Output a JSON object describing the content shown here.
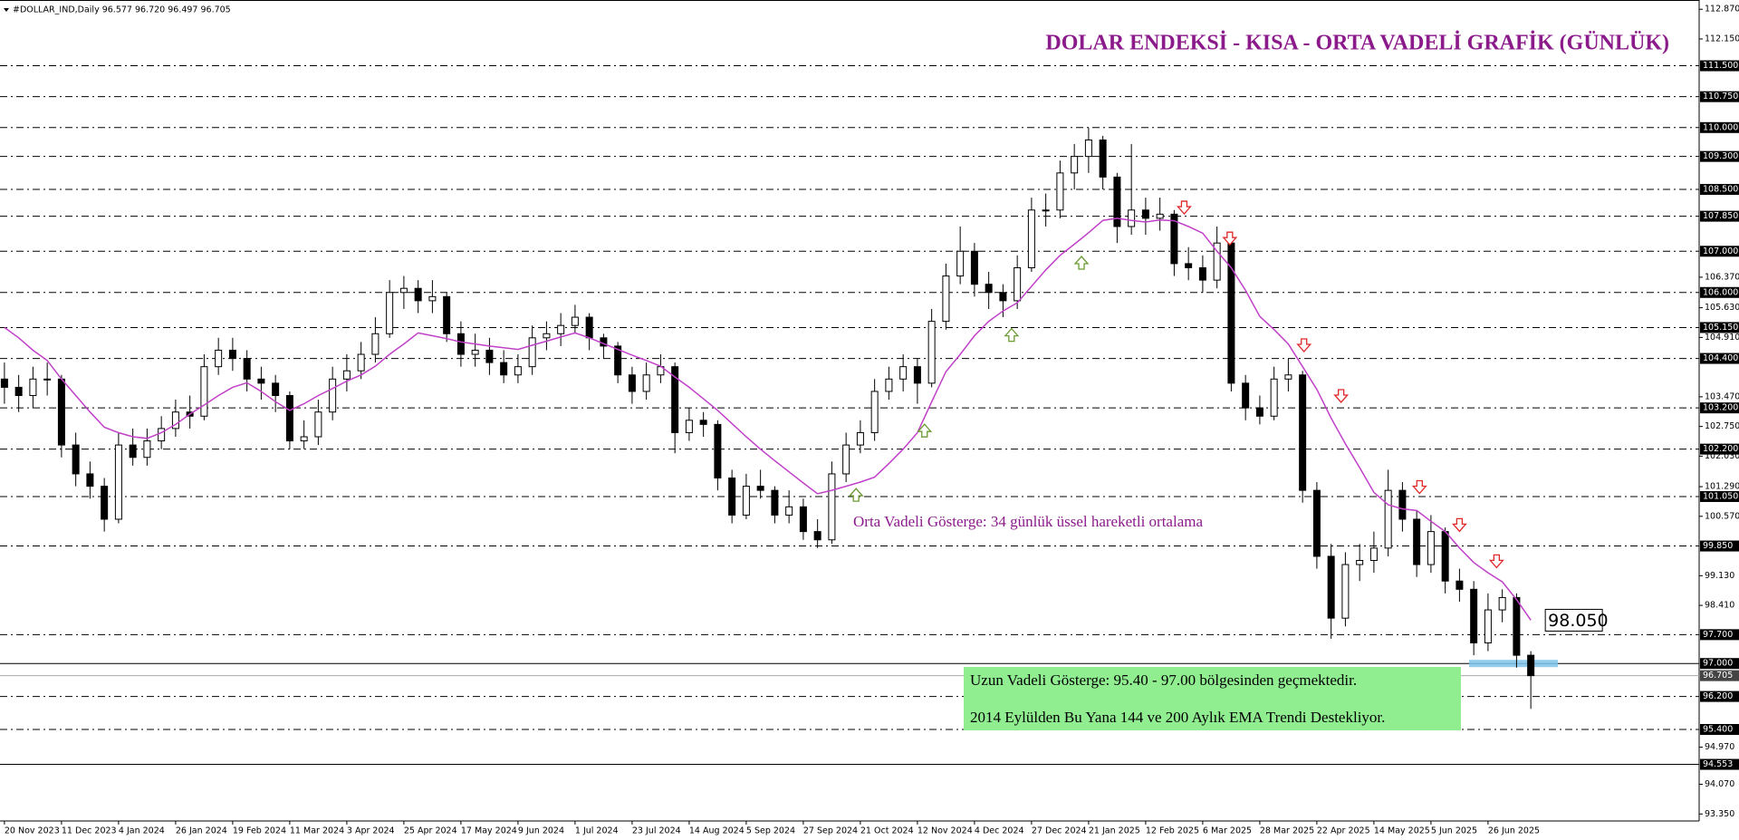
{
  "header": "#DOLLAR_IND,Daily  96.577 96.720 96.497 96.705",
  "chart_data": {
    "type": "candlestick",
    "title": "DOLAR ENDEKSİ - KISA - ORTA VADELİ GRAFİK (GÜNLÜK)",
    "ema_note": "Orta Vadeli Gösterge: 34 günlük üssel hareketli ortalama",
    "notes": [
      "Uzun Vadeli Gösterge: 95.40 - 97.00 bölgesinden geçmektedir.",
      "2014 Eylülden Bu Yana 144 ve 200 Aylık EMA Trendi Destekliyor."
    ],
    "categories": [
      "20 Nov 2023",
      null,
      null,
      null,
      "11 Dec 2023",
      null,
      null,
      null,
      "4 Jan 2024",
      null,
      null,
      null,
      "26 Jan 2024",
      null,
      null,
      null,
      "19 Feb 2024",
      null,
      null,
      null,
      "11 Mar 2024",
      null,
      null,
      null,
      "3 Apr 2024",
      null,
      null,
      null,
      "25 Apr 2024",
      null,
      null,
      null,
      "17 May 2024",
      null,
      null,
      null,
      "9 Jun 2024",
      null,
      null,
      null,
      "1 Jul 2024",
      null,
      null,
      null,
      "23 Jul 2024",
      null,
      null,
      null,
      "14 Aug 2024",
      null,
      null,
      null,
      "5 Sep 2024",
      null,
      null,
      null,
      "27 Sep 2024",
      null,
      null,
      null,
      "21 Oct 2024",
      null,
      null,
      null,
      "12 Nov 2024",
      null,
      null,
      null,
      "4 Dec 2024",
      null,
      null,
      null,
      "27 Dec 2024",
      null,
      null,
      null,
      "21 Jan 2025",
      null,
      null,
      null,
      "12 Feb 2025",
      null,
      null,
      null,
      "6 Mar 2025",
      null,
      null,
      null,
      "28 Mar 2025",
      null,
      null,
      null,
      "22 Apr 2025",
      null,
      null,
      null,
      "14 May 2025",
      null,
      null,
      null,
      "5 Jun 2025",
      null,
      null,
      null,
      "26 Jun 2025",
      null,
      null,
      null
    ],
    "candles": [
      [
        103.9,
        104.3,
        103.3,
        103.7
      ],
      [
        103.7,
        104.0,
        103.1,
        103.5
      ],
      [
        103.5,
        104.2,
        103.2,
        103.9
      ],
      [
        103.9,
        104.3,
        103.5,
        103.9
      ],
      [
        103.9,
        104.0,
        102.0,
        102.3
      ],
      [
        102.3,
        102.6,
        101.3,
        101.6
      ],
      [
        101.6,
        101.9,
        101.0,
        101.3
      ],
      [
        101.3,
        101.5,
        100.2,
        100.5
      ],
      [
        100.5,
        102.6,
        100.4,
        102.3
      ],
      [
        102.3,
        102.7,
        101.8,
        102.0
      ],
      [
        102.0,
        102.7,
        101.8,
        102.4
      ],
      [
        102.4,
        103.0,
        102.2,
        102.7
      ],
      [
        102.7,
        103.4,
        102.5,
        103.1
      ],
      [
        103.1,
        103.5,
        102.7,
        103.0
      ],
      [
        103.0,
        104.5,
        102.9,
        104.2
      ],
      [
        104.2,
        104.9,
        104.0,
        104.6
      ],
      [
        104.6,
        104.9,
        104.1,
        104.4
      ],
      [
        104.4,
        104.6,
        103.6,
        103.9
      ],
      [
        103.9,
        104.2,
        103.4,
        103.8
      ],
      [
        103.8,
        104.0,
        103.1,
        103.5
      ],
      [
        103.5,
        103.6,
        102.2,
        102.4
      ],
      [
        102.4,
        102.9,
        102.2,
        102.5
      ],
      [
        102.5,
        103.4,
        102.3,
        103.1
      ],
      [
        103.1,
        104.2,
        102.9,
        103.9
      ],
      [
        103.9,
        104.5,
        103.6,
        104.1
      ],
      [
        104.1,
        104.8,
        103.9,
        104.5
      ],
      [
        104.5,
        105.4,
        104.3,
        105.0
      ],
      [
        105.0,
        106.3,
        104.9,
        106.0
      ],
      [
        106.0,
        106.4,
        105.6,
        106.1
      ],
      [
        106.1,
        106.3,
        105.5,
        105.8
      ],
      [
        105.8,
        106.3,
        105.5,
        105.9
      ],
      [
        105.9,
        106.0,
        104.8,
        105.0
      ],
      [
        105.0,
        105.3,
        104.2,
        104.5
      ],
      [
        104.5,
        105.0,
        104.2,
        104.6
      ],
      [
        104.6,
        104.9,
        104.0,
        104.3
      ],
      [
        104.3,
        104.6,
        103.8,
        104.0
      ],
      [
        104.0,
        104.5,
        103.8,
        104.2
      ],
      [
        104.2,
        105.2,
        104.0,
        104.9
      ],
      [
        104.9,
        105.3,
        104.6,
        105.0
      ],
      [
        105.0,
        105.5,
        104.7,
        105.2
      ],
      [
        105.2,
        105.7,
        105.0,
        105.4
      ],
      [
        105.4,
        105.5,
        104.6,
        104.9
      ],
      [
        104.9,
        105.0,
        104.4,
        104.7
      ],
      [
        104.7,
        104.8,
        103.8,
        104.0
      ],
      [
        104.0,
        104.2,
        103.3,
        103.6
      ],
      [
        103.6,
        104.3,
        103.4,
        104.0
      ],
      [
        104.0,
        104.5,
        103.8,
        104.2
      ],
      [
        104.2,
        104.3,
        102.1,
        102.6
      ],
      [
        102.6,
        103.2,
        102.4,
        102.9
      ],
      [
        102.9,
        103.1,
        102.5,
        102.8
      ],
      [
        102.8,
        102.9,
        101.2,
        101.5
      ],
      [
        101.5,
        101.7,
        100.4,
        100.6
      ],
      [
        100.6,
        101.6,
        100.5,
        101.3
      ],
      [
        101.3,
        101.7,
        101.0,
        101.2
      ],
      [
        101.2,
        101.3,
        100.4,
        100.6
      ],
      [
        100.6,
        101.2,
        100.4,
        100.8
      ],
      [
        100.8,
        101.0,
        100.0,
        100.2
      ],
      [
        100.2,
        100.5,
        99.8,
        100.0
      ],
      [
        100.0,
        101.9,
        99.9,
        101.6
      ],
      [
        101.6,
        102.6,
        101.4,
        102.3
      ],
      [
        102.3,
        102.9,
        102.1,
        102.6
      ],
      [
        102.6,
        103.9,
        102.4,
        103.6
      ],
      [
        103.6,
        104.2,
        103.4,
        103.9
      ],
      [
        103.9,
        104.5,
        103.6,
        104.2
      ],
      [
        104.2,
        104.4,
        103.3,
        103.8
      ],
      [
        103.8,
        105.6,
        103.7,
        105.3
      ],
      [
        105.3,
        106.7,
        105.1,
        106.4
      ],
      [
        106.4,
        107.6,
        106.2,
        107.0
      ],
      [
        107.0,
        107.2,
        105.9,
        106.2
      ],
      [
        106.2,
        106.5,
        105.6,
        106.0
      ],
      [
        106.0,
        106.2,
        105.4,
        105.8
      ],
      [
        105.8,
        106.9,
        105.6,
        106.6
      ],
      [
        106.6,
        108.3,
        106.5,
        108.0
      ],
      [
        108.0,
        108.4,
        107.6,
        108.0
      ],
      [
        108.0,
        109.2,
        107.8,
        108.9
      ],
      [
        108.9,
        109.6,
        108.5,
        109.3
      ],
      [
        109.3,
        110.0,
        108.9,
        109.7
      ],
      [
        109.7,
        109.8,
        108.5,
        108.8
      ],
      [
        108.8,
        108.9,
        107.2,
        107.6
      ],
      [
        107.6,
        109.6,
        107.4,
        108.0
      ],
      [
        108.0,
        108.3,
        107.4,
        107.8
      ],
      [
        107.8,
        108.3,
        107.5,
        107.9
      ],
      [
        107.9,
        108.0,
        106.4,
        106.7
      ],
      [
        106.7,
        107.1,
        106.3,
        106.6
      ],
      [
        106.6,
        106.9,
        106.0,
        106.3
      ],
      [
        106.3,
        107.6,
        106.1,
        107.2
      ],
      [
        107.2,
        107.3,
        103.6,
        103.8
      ],
      [
        103.8,
        104.0,
        102.9,
        103.2
      ],
      [
        103.2,
        103.5,
        102.8,
        103.0
      ],
      [
        103.0,
        104.2,
        102.9,
        103.9
      ],
      [
        103.9,
        104.4,
        103.6,
        104.0
      ],
      [
        104.0,
        104.1,
        100.9,
        101.2
      ],
      [
        101.2,
        101.4,
        99.3,
        99.6
      ],
      [
        99.6,
        99.9,
        97.6,
        98.1
      ],
      [
        98.1,
        99.7,
        97.9,
        99.4
      ],
      [
        99.4,
        99.9,
        99.0,
        99.5
      ],
      [
        99.5,
        100.2,
        99.2,
        99.8
      ],
      [
        99.8,
        101.7,
        99.6,
        101.2
      ],
      [
        101.2,
        101.4,
        100.2,
        100.5
      ],
      [
        100.5,
        100.7,
        99.1,
        99.4
      ],
      [
        99.4,
        100.6,
        99.2,
        100.2
      ],
      [
        100.2,
        100.3,
        98.7,
        99.0
      ],
      [
        99.0,
        99.3,
        98.5,
        98.8
      ],
      [
        98.8,
        99.0,
        97.2,
        97.5
      ],
      [
        97.5,
        98.7,
        97.3,
        98.3
      ],
      [
        98.3,
        98.8,
        98.0,
        98.6
      ],
      [
        98.6,
        98.7,
        96.9,
        97.2
      ],
      [
        97.2,
        97.3,
        95.9,
        96.705
      ]
    ],
    "up_color": "#ffffff",
    "down_color": "#000000",
    "ema": {
      "color": "#c040c8",
      "last_label": "98.050",
      "values": [
        105.15,
        104.9,
        104.6,
        104.35,
        103.9,
        103.5,
        103.1,
        102.73,
        102.6,
        102.5,
        102.46,
        102.6,
        102.8,
        103.05,
        103.27,
        103.5,
        103.7,
        103.81,
        103.6,
        103.35,
        103.14,
        103.3,
        103.5,
        103.67,
        103.85,
        104.0,
        104.21,
        104.5,
        104.75,
        105.02,
        104.95,
        104.88,
        104.8,
        104.75,
        104.7,
        104.66,
        104.62,
        104.72,
        104.82,
        104.92,
        105.02,
        104.9,
        104.76,
        104.62,
        104.48,
        104.35,
        104.21,
        103.95,
        103.7,
        103.42,
        103.14,
        102.82,
        102.5,
        102.2,
        101.92,
        101.65,
        101.38,
        101.12,
        101.2,
        101.3,
        101.4,
        101.52,
        101.85,
        102.2,
        102.6,
        103.35,
        104.08,
        104.5,
        104.95,
        105.3,
        105.55,
        105.75,
        106.15,
        106.55,
        106.9,
        107.17,
        107.45,
        107.75,
        107.8,
        107.75,
        107.71,
        107.76,
        107.74,
        107.6,
        107.44,
        107.0,
        106.6,
        106.05,
        105.42,
        105.1,
        104.75,
        104.2,
        103.65,
        102.95,
        102.33,
        101.75,
        101.15,
        100.85,
        100.75,
        100.71,
        100.45,
        100.2,
        99.8,
        99.45,
        99.2,
        98.98,
        98.55,
        98.05
      ]
    },
    "up_arrows": [
      [
        59.7,
        101.09
      ],
      [
        64.5,
        102.65
      ],
      [
        70.6,
        104.97
      ],
      [
        75.5,
        106.72
      ]
    ],
    "down_arrows": [
      [
        82.7,
        108.06
      ],
      [
        85.9,
        107.31
      ],
      [
        91.1,
        104.72
      ],
      [
        93.7,
        103.49
      ],
      [
        99.2,
        101.28
      ],
      [
        102.0,
        100.36
      ],
      [
        104.6,
        99.48
      ]
    ],
    "up_arrow_color": "#6a9a30",
    "down_arrow_color": "#e02828",
    "ylim": [
      93.18,
      113.095
    ],
    "yticks": [
      {
        "value": 112.87,
        "label": "112.870"
      },
      {
        "value": 112.15,
        "label": "112.150"
      },
      {
        "value": 106.37,
        "label": "106.370"
      },
      {
        "value": 105.63,
        "label": "105.630"
      },
      {
        "value": 104.91,
        "label": "104.910"
      },
      {
        "value": 103.47,
        "label": "103.470"
      },
      {
        "value": 102.75,
        "label": "102.750"
      },
      {
        "value": 102.03,
        "label": "102.030"
      },
      {
        "value": 101.29,
        "label": "101.290"
      },
      {
        "value": 100.57,
        "label": "100.570"
      },
      {
        "value": 99.13,
        "label": "99.130"
      },
      {
        "value": 98.41,
        "label": "98.410"
      },
      {
        "value": 94.97,
        "label": "94.970"
      },
      {
        "value": 94.07,
        "label": "94.070"
      },
      {
        "value": 93.35,
        "label": "93.350"
      }
    ],
    "levels": [
      {
        "value": 111.5,
        "label": "111.500"
      },
      {
        "value": 110.75,
        "label": "110.750"
      },
      {
        "value": 110,
        "label": "110.000"
      },
      {
        "value": 109.3,
        "label": "109.300"
      },
      {
        "value": 108.5,
        "label": "108.500"
      },
      {
        "value": 107.85,
        "label": "107.850"
      },
      {
        "value": 107,
        "label": "107.000"
      },
      {
        "value": 106,
        "label": "106.000"
      },
      {
        "value": 105.15,
        "label": "105.150"
      },
      {
        "value": 104.4,
        "label": "104.400"
      },
      {
        "value": 103.2,
        "label": "103.200"
      },
      {
        "value": 102.2,
        "label": "102.200"
      },
      {
        "value": 101.05,
        "label": "101.050"
      },
      {
        "value": 99.85,
        "label": "99.850"
      },
      {
        "value": 97.7,
        "label": "97.700"
      },
      {
        "value": 96.2,
        "label": "96.200"
      },
      {
        "value": 95.4,
        "label": "95.400"
      }
    ],
    "solid_levels": [
      {
        "value": 97,
        "label": "97.000"
      },
      {
        "value": 94.553,
        "label": "94.553"
      }
    ],
    "price_line": {
      "value": 96.705,
      "label": "96.705"
    }
  }
}
